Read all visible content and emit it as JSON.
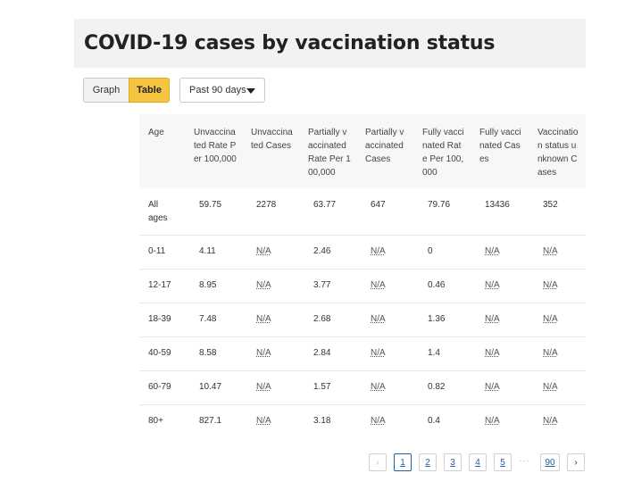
{
  "title": "COVID-19 cases by vaccination status",
  "view_toggle": {
    "graph_label": "Graph",
    "table_label": "Table"
  },
  "period_select": {
    "selected": "Past 90 days"
  },
  "table": {
    "headers": [
      "Age",
      "Unvaccinated Rate Per 100,000",
      "Unvaccinated Cases",
      "Partially vaccinated Rate Per 100,000",
      "Partially vaccinated Cases",
      "Fully vaccinated Rate Per 100,000",
      "Fully vaccinated Cases",
      "Vaccination status unknown Cases"
    ],
    "rows": [
      [
        "All ages",
        "59.75",
        "2278",
        "63.77",
        "647",
        "79.76",
        "13436",
        "352"
      ],
      [
        "0-11",
        "4.11",
        "N/A",
        "2.46",
        "N/A",
        "0",
        "N/A",
        "N/A"
      ],
      [
        "12-17",
        "8.95",
        "N/A",
        "3.77",
        "N/A",
        "0.46",
        "N/A",
        "N/A"
      ],
      [
        "18-39",
        "7.48",
        "N/A",
        "2.68",
        "N/A",
        "1.36",
        "N/A",
        "N/A"
      ],
      [
        "40-59",
        "8.58",
        "N/A",
        "2.84",
        "N/A",
        "1.4",
        "N/A",
        "N/A"
      ],
      [
        "60-79",
        "10.47",
        "N/A",
        "1.57",
        "N/A",
        "0.82",
        "N/A",
        "N/A"
      ],
      [
        "80+",
        "827.1",
        "N/A",
        "3.18",
        "N/A",
        "0.4",
        "N/A",
        "N/A"
      ]
    ]
  },
  "pagination": {
    "prev": "‹",
    "pages": [
      "1",
      "2",
      "3",
      "4",
      "5"
    ],
    "ellipsis": "···",
    "last": "90",
    "next": "›",
    "current": "1"
  }
}
